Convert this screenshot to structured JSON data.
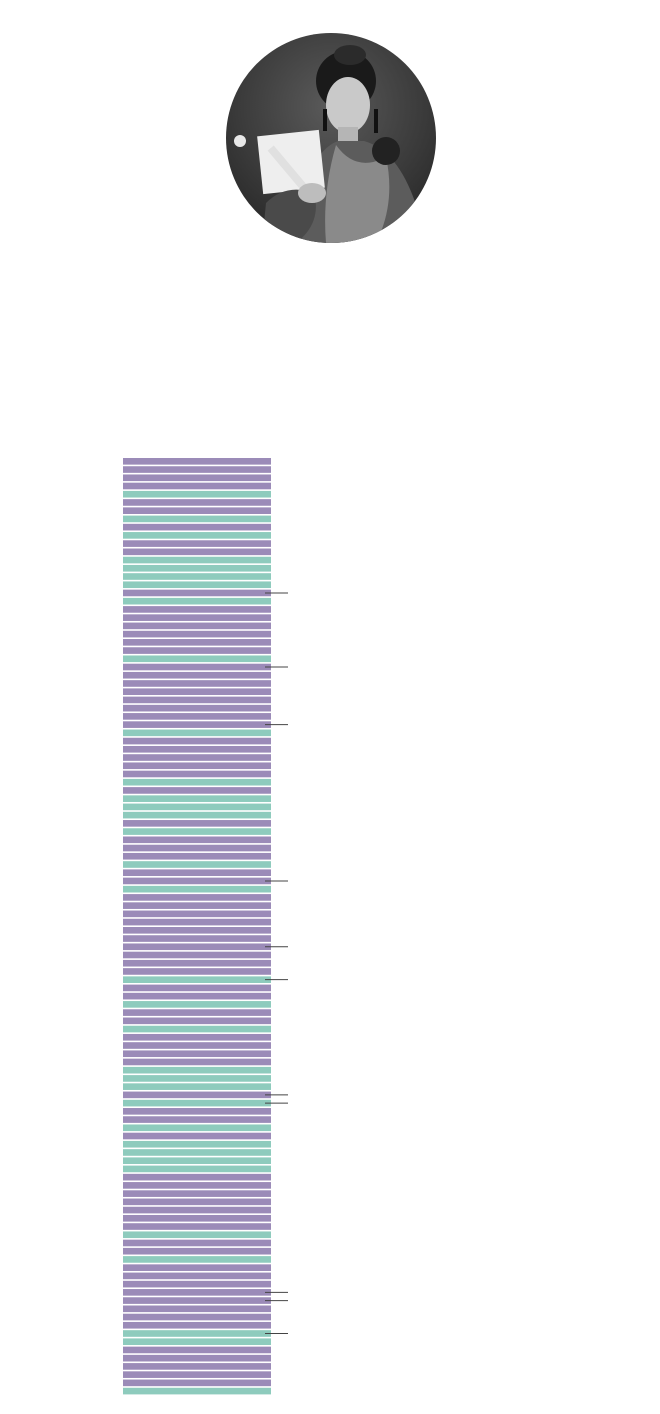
{
  "portrait": {
    "icon": "person-portrait-icon"
  },
  "colors": {
    "purple": "#9b8bb8",
    "green": "#8ecbbd",
    "separator": "#ffffff",
    "tick": "#444444"
  },
  "chart_data": {
    "type": "bar",
    "title": "",
    "xlabel": "",
    "ylabel": "",
    "legend": [],
    "segments": [
      "purple",
      "purple",
      "purple",
      "purple",
      "green",
      "purple",
      "purple",
      "green",
      "purple",
      "green",
      "purple",
      "purple",
      "green",
      "green",
      "green",
      "green",
      "purple",
      "green",
      "purple",
      "purple",
      "purple",
      "purple",
      "purple",
      "purple",
      "green",
      "purple",
      "purple",
      "purple",
      "purple",
      "purple",
      "purple",
      "purple",
      "purple",
      "green",
      "purple",
      "purple",
      "purple",
      "purple",
      "purple",
      "green",
      "purple",
      "green",
      "green",
      "green",
      "purple",
      "green",
      "purple",
      "purple",
      "purple",
      "green",
      "purple",
      "purple",
      "green",
      "purple",
      "purple",
      "purple",
      "purple",
      "purple",
      "purple",
      "purple",
      "purple",
      "purple",
      "purple",
      "green",
      "purple",
      "purple",
      "green",
      "purple",
      "purple",
      "green",
      "purple",
      "purple",
      "purple",
      "purple",
      "green",
      "green",
      "green",
      "purple",
      "green",
      "purple",
      "purple",
      "green",
      "purple",
      "green",
      "green",
      "green",
      "green",
      "purple",
      "purple",
      "purple",
      "purple",
      "purple",
      "purple",
      "purple",
      "green",
      "purple",
      "purple",
      "green",
      "purple",
      "purple",
      "purple",
      "purple",
      "purple",
      "purple",
      "purple",
      "purple",
      "green",
      "green",
      "purple",
      "purple",
      "purple",
      "purple",
      "purple",
      "green"
    ],
    "marked_segments": [
      16,
      25,
      32,
      51,
      59,
      63,
      77,
      78,
      101,
      102,
      106
    ]
  }
}
